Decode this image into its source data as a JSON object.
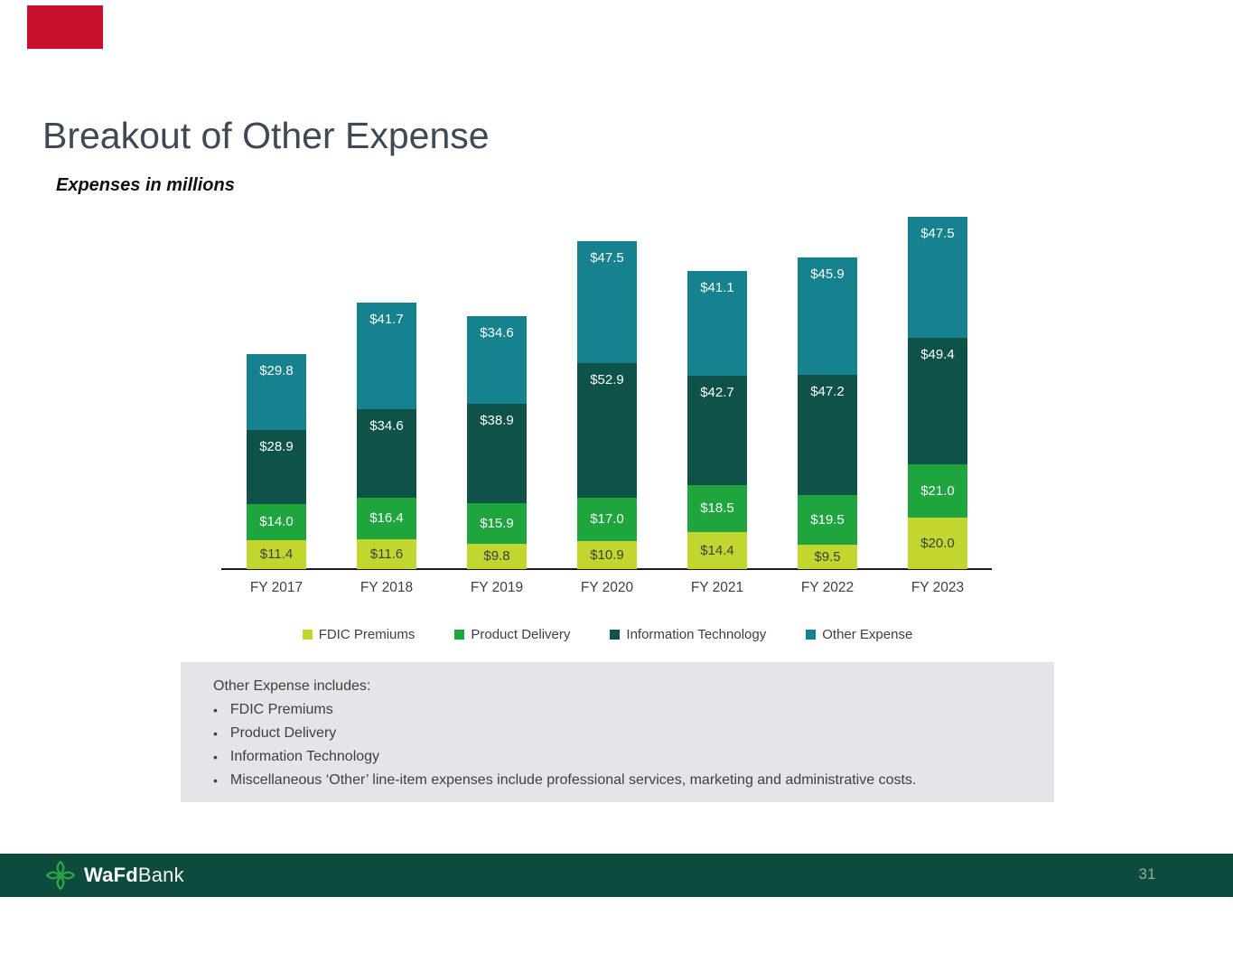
{
  "slide": {
    "title": "Breakout of Other Expense",
    "subtitle": "Expenses in millions"
  },
  "colors": {
    "marker_red": "#c8102e",
    "fdic_premiums": "#c2d62f",
    "product_delivery": "#1fa53e",
    "information_technology": "#0f5249",
    "other_expense": "#16818f",
    "footer_green": "#0c4b3e",
    "note_box_gray": "#e3e5e8",
    "title_slate": "#3e4956",
    "logo_green": "#2ba945"
  },
  "chart_data": {
    "type": "bar",
    "stacked": true,
    "title": "Breakout of Other Expense",
    "units_note": "Expenses in millions",
    "value_prefix": "$",
    "value_decimals": 1,
    "categories": [
      "FY 2017",
      "FY 2018",
      "FY 2019",
      "FY 2020",
      "FY 2021",
      "FY 2022",
      "FY 2023"
    ],
    "series": [
      {
        "name": "FDIC Premiums",
        "color": "#c2d62f",
        "label_color": "#3f3f3f",
        "values": [
          11.4,
          11.6,
          9.8,
          10.9,
          14.4,
          9.5,
          20.0
        ]
      },
      {
        "name": "Product Delivery",
        "color": "#1fa53e",
        "label_color": "#ffffff",
        "values": [
          14.0,
          16.4,
          15.9,
          17.0,
          18.5,
          19.5,
          21.0
        ]
      },
      {
        "name": "Information Technology",
        "color": "#0f5249",
        "label_color": "#ffffff",
        "values": [
          28.9,
          34.6,
          38.9,
          52.9,
          42.7,
          47.2,
          49.4
        ]
      },
      {
        "name": "Other Expense",
        "color": "#16818f",
        "label_color": "#ffffff",
        "values": [
          29.8,
          41.7,
          34.6,
          47.5,
          41.1,
          45.9,
          47.5
        ]
      }
    ],
    "totals": [
      84.1,
      104.3,
      99.2,
      128.3,
      116.7,
      122.1,
      137.9
    ],
    "legend_position": "bottom",
    "gridlines": false,
    "y_axis_visible": false,
    "baseline_visible": true
  },
  "note_box": {
    "heading": "Other Expense includes:",
    "bullets": [
      "FDIC Premiums",
      "Product Delivery",
      "Information Technology",
      "Miscellaneous ‘Other’ line-item expenses include professional services, marketing and administrative costs."
    ]
  },
  "footer": {
    "brand_bold": "WaFd",
    "brand_regular": "Bank",
    "page_number": "31"
  }
}
